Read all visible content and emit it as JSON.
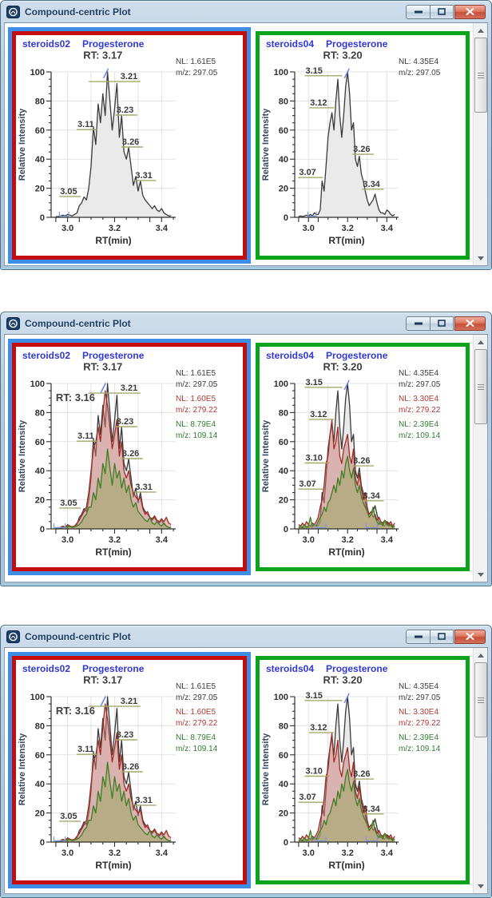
{
  "window_title": "Compound-centric Plot",
  "colors": {
    "selection_frame": "#3e8ee8",
    "left_plot_border": "#c50d0d",
    "right_plot_border": "#0aa41c",
    "header_text": "#3038d8",
    "titlebar_text": "#1a3a5e",
    "annotation_black": "#3b3b3b",
    "annotation_red": "#ae3a32",
    "annotation_green": "#2f7d33",
    "peak_label_underline": "#a3a96b"
  },
  "chart_data": {
    "type": "line",
    "axis": {
      "xlabel": "RT(min)",
      "ylabel": "Relative Intensity",
      "xticks": [
        "3.0",
        "3.2",
        "3.4"
      ],
      "yticks": [
        "0",
        "20",
        "40",
        "60",
        "80",
        "100"
      ],
      "x_range": [
        2.93,
        3.46
      ],
      "y_range": [
        0,
        100
      ],
      "x_grid": [
        3.0,
        3.1,
        3.2,
        3.3,
        3.4
      ],
      "y_grid": [
        20,
        40,
        60,
        80,
        100
      ]
    },
    "traces_lib": {
      "left_black": {
        "color": "#3a3a3a",
        "fill": "#eaeaea",
        "x0": 2.95,
        "dx": 0.01,
        "v": [
          0.5,
          0.5,
          1,
          1.5,
          1,
          2,
          1.5,
          1,
          2,
          3,
          8,
          10,
          14,
          12,
          20,
          35,
          62,
          50,
          78,
          65,
          85,
          70,
          100,
          80,
          60,
          75,
          92,
          55,
          70,
          45,
          40,
          48,
          35,
          22,
          28,
          18,
          25,
          15,
          12,
          10,
          8,
          6,
          8,
          5,
          4,
          6,
          3,
          2,
          1,
          1
        ]
      },
      "right_black": {
        "color": "#3a3a3a",
        "fill": "#eaeaea",
        "x0": 2.95,
        "dx": 0.01,
        "v": [
          0.5,
          1,
          0.5,
          1,
          1.5,
          1,
          2,
          1,
          3,
          2,
          2,
          5,
          25,
          18,
          35,
          55,
          65,
          72,
          60,
          80,
          95,
          70,
          55,
          70,
          90,
          100,
          85,
          60,
          65,
          40,
          35,
          42,
          30,
          25,
          18,
          12,
          8,
          10,
          12,
          16,
          10,
          5,
          3,
          3,
          2,
          5,
          4,
          2,
          1,
          2
        ]
      },
      "left_red": {
        "color": "#9e2b25",
        "fill": "rgba(201,124,118,0.50)",
        "x0": 2.95,
        "dx": 0.01,
        "v": [
          1,
          0.5,
          1,
          2,
          1,
          3,
          2,
          1.5,
          2,
          4,
          6,
          9,
          12,
          15,
          25,
          40,
          55,
          60,
          70,
          60,
          80,
          95,
          85,
          70,
          55,
          65,
          75,
          50,
          60,
          40,
          35,
          40,
          30,
          25,
          22,
          20,
          22,
          14,
          10,
          12,
          8,
          7,
          9,
          6,
          5,
          7,
          5,
          8,
          4,
          3
        ]
      },
      "left_green": {
        "color": "#3e7d23",
        "fill": "rgba(155,165,100,0.55)",
        "x0": 2.95,
        "dx": 0.01,
        "v": [
          0.5,
          1,
          0.5,
          1,
          1.5,
          1,
          2,
          1,
          1.5,
          2,
          3,
          5,
          8,
          10,
          15,
          15,
          25,
          20,
          35,
          28,
          45,
          38,
          55,
          42,
          30,
          45,
          35,
          40,
          28,
          35,
          25,
          30,
          20,
          15,
          18,
          12,
          10,
          8,
          6,
          5,
          8,
          4,
          3,
          5,
          3,
          2,
          4,
          2,
          1,
          1
        ]
      },
      "right_red": {
        "color": "#9e2b25",
        "fill": "rgba(201,124,118,0.50)",
        "x0": 2.95,
        "dx": 0.01,
        "v": [
          3,
          2,
          4,
          2,
          5,
          3,
          2,
          4,
          3,
          5,
          8,
          15,
          20,
          30,
          45,
          50,
          65,
          75,
          55,
          60,
          70,
          50,
          45,
          55,
          60,
          65,
          50,
          45,
          55,
          35,
          30,
          38,
          28,
          20,
          25,
          15,
          10,
          12,
          8,
          10,
          6,
          8,
          5,
          4,
          6,
          4,
          3,
          5,
          2,
          4
        ]
      },
      "right_green": {
        "color": "#3e7d23",
        "fill": "rgba(155,165,100,0.55)",
        "x0": 2.95,
        "dx": 0.01,
        "v": [
          1,
          2,
          1,
          3,
          1,
          2,
          8,
          2,
          3,
          2,
          5,
          8,
          10,
          15,
          12,
          18,
          20,
          25,
          30,
          25,
          35,
          30,
          40,
          35,
          45,
          50,
          40,
          35,
          42,
          30,
          25,
          30,
          22,
          18,
          15,
          12,
          8,
          10,
          15,
          8,
          5,
          3,
          5,
          2,
          6,
          3,
          2,
          3,
          1,
          2
        ]
      }
    },
    "plot_specs": {
      "left_single": {
        "sample": "steroids02",
        "compound": "Progesterone",
        "border": "#c50d0d",
        "selected": true,
        "rt": {
          "label": "RT: 3.17",
          "x": 3.15,
          "y": 109
        },
        "slash": {
          "x": 3.163,
          "y": 99
        },
        "annotations": [
          {
            "nl": "NL: 1.61E5",
            "mz": "m/z: 297.05",
            "color": "#3b3b3b"
          }
        ],
        "traces": [
          "left_black"
        ],
        "labels": [
          {
            "t": "3.05",
            "x": 2.968,
            "y": 16,
            "u": [
              -1,
              26
            ]
          },
          {
            "t": "3.11",
            "x": 3.042,
            "y": 62,
            "u": [
              -1,
              24
            ]
          },
          {
            "t": "3.21",
            "x": 3.225,
            "y": 95,
            "u": [
              -40,
              25
            ]
          },
          {
            "t": "3.23",
            "x": 3.208,
            "y": 72,
            "u": [
              -1,
              26
            ]
          },
          {
            "t": "3.26",
            "x": 3.232,
            "y": 50,
            "u": [
              -1,
              26
            ]
          },
          {
            "t": "3.31",
            "x": 3.288,
            "y": 27,
            "u": [
              -1,
              26
            ]
          }
        ],
        "markers": [
          [
            2.965,
            3.005
          ]
        ]
      },
      "right_single": {
        "sample": "steroids04",
        "compound": "Progesterone",
        "border": "#0aa41c",
        "selected": false,
        "rt": {
          "label": "RT: 3.20",
          "x": 3.175,
          "y": 109
        },
        "slash": {
          "x": 3.196,
          "y": 99
        },
        "annotations": [
          {
            "nl": "NL: 4.35E4",
            "mz": "m/z: 297.05",
            "color": "#3b3b3b"
          }
        ],
        "traces": [
          "right_black"
        ],
        "labels": [
          {
            "t": "3.15",
            "x": 2.985,
            "y": 99,
            "u": [
              -1,
              46
            ]
          },
          {
            "t": "3.12",
            "x": 3.008,
            "y": 77,
            "u": [
              -1,
              30
            ]
          },
          {
            "t": "3.07",
            "x": 2.952,
            "y": 29,
            "u": [
              -1,
              30
            ]
          },
          {
            "t": "3.26",
            "x": 3.228,
            "y": 45,
            "u": [
              -1,
              26
            ]
          },
          {
            "t": "3.34",
            "x": 3.278,
            "y": 21,
            "u": [
              -1,
              26
            ]
          }
        ],
        "markers": [
          [
            2.998,
            3.04
          ]
        ]
      },
      "left_multi": {
        "sample": "steroids02",
        "compound": "Progesterone",
        "border": "#c50d0d",
        "selected": true,
        "rt": {
          "label": "RT: 3.17",
          "x": 3.15,
          "y": 109
        },
        "rt2": {
          "label": "RT: 3.16",
          "x": 2.95,
          "y": 88
        },
        "slash": {
          "x": 3.152,
          "y": 97
        },
        "annotations": [
          {
            "nl": "NL: 1.61E5",
            "mz": "m/z: 297.05",
            "color": "#3b3b3b"
          },
          {
            "nl": "NL: 1.60E5",
            "mz": "m/z: 279.22",
            "color": "#ae3a32"
          },
          {
            "nl": "NL: 8.79E4",
            "mz": "m/z: 109.14",
            "color": "#2f7d33"
          }
        ],
        "traces": [
          "left_black",
          "left_red",
          "left_green"
        ],
        "labels": [
          {
            "t": "3.05",
            "x": 2.968,
            "y": 16,
            "u": [
              -1,
              26
            ]
          },
          {
            "t": "3.11",
            "x": 3.042,
            "y": 62,
            "u": [
              -1,
              24
            ]
          },
          {
            "t": "3.21",
            "x": 3.225,
            "y": 95,
            "u": [
              -40,
              25
            ]
          },
          {
            "t": "3.23",
            "x": 3.208,
            "y": 72,
            "u": [
              -1,
              26
            ]
          },
          {
            "t": "3.26",
            "x": 3.232,
            "y": 50,
            "u": [
              -1,
              26
            ]
          },
          {
            "t": "3.31",
            "x": 3.288,
            "y": 27,
            "u": [
              -1,
              26
            ]
          }
        ],
        "markers": [
          [
            2.942,
            2.99
          ]
        ]
      },
      "right_multi": {
        "sample": "steroids04",
        "compound": "Progesterone",
        "border": "#0aa41c",
        "selected": false,
        "rt": {
          "label": "RT: 3.20",
          "x": 3.175,
          "y": 109
        },
        "slash": {
          "x": 3.196,
          "y": 99
        },
        "annotations": [
          {
            "nl": "NL: 4.35E4",
            "mz": "m/z: 297.05",
            "color": "#3b3b3b"
          },
          {
            "nl": "NL: 3.30E4",
            "mz": "m/z: 279.22",
            "color": "#ae3a32"
          },
          {
            "nl": "NL: 2.39E4",
            "mz": "m/z: 109.14",
            "color": "#2f7d33"
          }
        ],
        "traces": [
          "right_black",
          "right_red",
          "right_green"
        ],
        "labels": [
          {
            "t": "3.15",
            "x": 2.985,
            "y": 99,
            "u": [
              -1,
              46
            ]
          },
          {
            "t": "3.12",
            "x": 3.008,
            "y": 77,
            "u": [
              -1,
              30
            ]
          },
          {
            "t": "3.10",
            "x": 2.985,
            "y": 47,
            "u": [
              -1,
              30
            ]
          },
          {
            "t": "3.07",
            "x": 2.952,
            "y": 29,
            "u": [
              -1,
              30
            ]
          },
          {
            "t": "3.26",
            "x": 3.228,
            "y": 45,
            "u": [
              -1,
              26
            ]
          },
          {
            "t": "3.34",
            "x": 3.278,
            "y": 21,
            "u": [
              -1,
              26
            ]
          }
        ],
        "markers": [
          [
            3.036,
            3.09
          ],
          [
            3.295,
            3.352
          ]
        ]
      }
    }
  },
  "windows": [
    {
      "name": "window-1",
      "plots": [
        "left_single",
        "right_single"
      ]
    },
    {
      "name": "window-2",
      "plots": [
        "left_multi",
        "right_multi"
      ]
    },
    {
      "name": "window-3",
      "plots": [
        "left_multi",
        "right_multi"
      ]
    }
  ]
}
